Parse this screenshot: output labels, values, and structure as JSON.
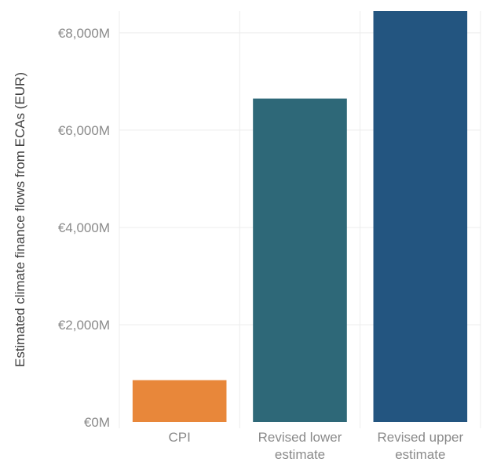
{
  "chart_data": {
    "type": "bar",
    "title": "",
    "xlabel": "",
    "ylabel": "Estimated climate finance flows from ECAs (EUR)",
    "categories": [
      [
        "CPI"
      ],
      [
        "Revised lower",
        "estimate"
      ],
      [
        "Revised upper",
        "estimate"
      ]
    ],
    "values": [
      860,
      6650,
      8450
    ],
    "value_unit": "€ million",
    "colors": [
      "#E8873A",
      "#2E6878",
      "#235580"
    ],
    "ylim": [
      0,
      8450
    ],
    "y_ticks": [
      0,
      2000,
      4000,
      6000,
      8000
    ],
    "y_tick_labels": [
      "€0M",
      "€2,000M",
      "€4,000M",
      "€6,000M",
      "€8,000M"
    ],
    "grid": true,
    "legend": "none"
  }
}
